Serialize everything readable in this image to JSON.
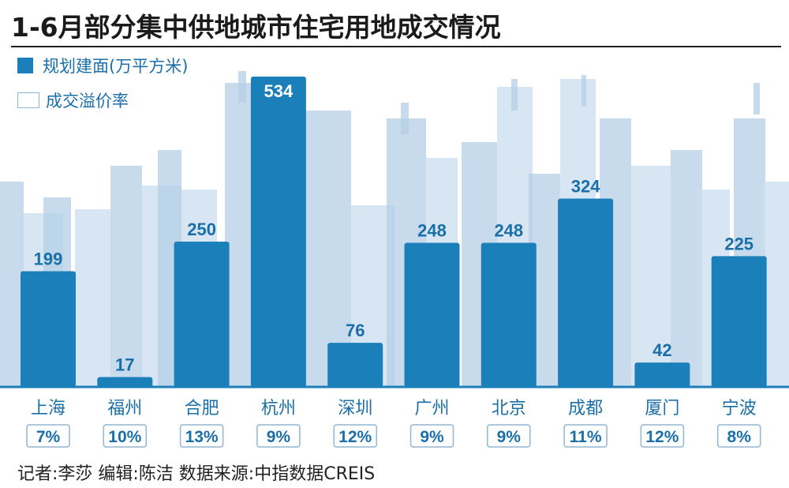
{
  "title": "1-6月部分集中供地城市住宅用地成交情况",
  "legend": {
    "area_label": "规划建面(万平方米)",
    "rate_label": "成交溢价率"
  },
  "source": "记者:李莎   编辑:陈洁   数据来源:中指数据CREIS",
  "colors": {
    "bar": "#1b7fb9",
    "label": "#1b6fa8",
    "skyline": "#c9ddee",
    "skyline_dark": "#b4cfe6"
  },
  "chart_data": {
    "type": "bar",
    "categories": [
      "上海",
      "福州",
      "合肥",
      "杭州",
      "深圳",
      "广州",
      "北京",
      "成都",
      "厦门",
      "宁波"
    ],
    "series": [
      {
        "name": "规划建面(万平方米)",
        "values": [
          199,
          17,
          250,
          534,
          76,
          248,
          248,
          324,
          42,
          225
        ]
      },
      {
        "name": "成交溢价率",
        "values": [
          "7%",
          "10%",
          "13%",
          "9%",
          "12%",
          "9%",
          "9%",
          "11%",
          "12%",
          "8%"
        ]
      }
    ],
    "ylim": [
      0,
      534
    ]
  }
}
